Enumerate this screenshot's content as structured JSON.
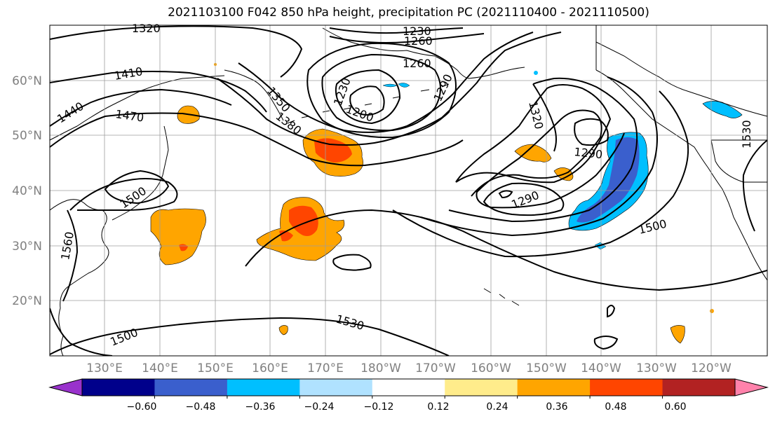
{
  "title": "2021103100 F042 850 hPa height, precipitation PC (2021110400 - 2021110500)",
  "lat_labels": [
    "60°N",
    "50°N",
    "40°N",
    "30°N",
    "20°N"
  ],
  "lon_labels": [
    "130°E",
    "140°E",
    "150°E",
    "160°E",
    "170°E",
    "180°W",
    "170°W",
    "160°W",
    "150°W",
    "140°W",
    "130°W",
    "120°W"
  ],
  "contour_labels": [
    "1320",
    "1230",
    "1260",
    "1260",
    "1410",
    "1350",
    "1230",
    "1200",
    "1290",
    "1440",
    "1470",
    "1380",
    "1320",
    "1290",
    "1290",
    "1500",
    "1500",
    "1560",
    "1530",
    "1500",
    "1530"
  ],
  "colorbar": {
    "colors": [
      "#9932cc",
      "#00008b",
      "#3a5fcd",
      "#00bfff",
      "#b0e2ff",
      "#ffffff",
      "#ffec8b",
      "#ffa500",
      "#ff4500",
      "#b22222",
      "#ff82ab"
    ],
    "tick_labels": [
      "−0.60",
      "−0.48",
      "−0.36",
      "−0.24",
      "−0.12",
      "0.12",
      "0.24",
      "0.36",
      "0.48",
      "0.60"
    ]
  }
}
